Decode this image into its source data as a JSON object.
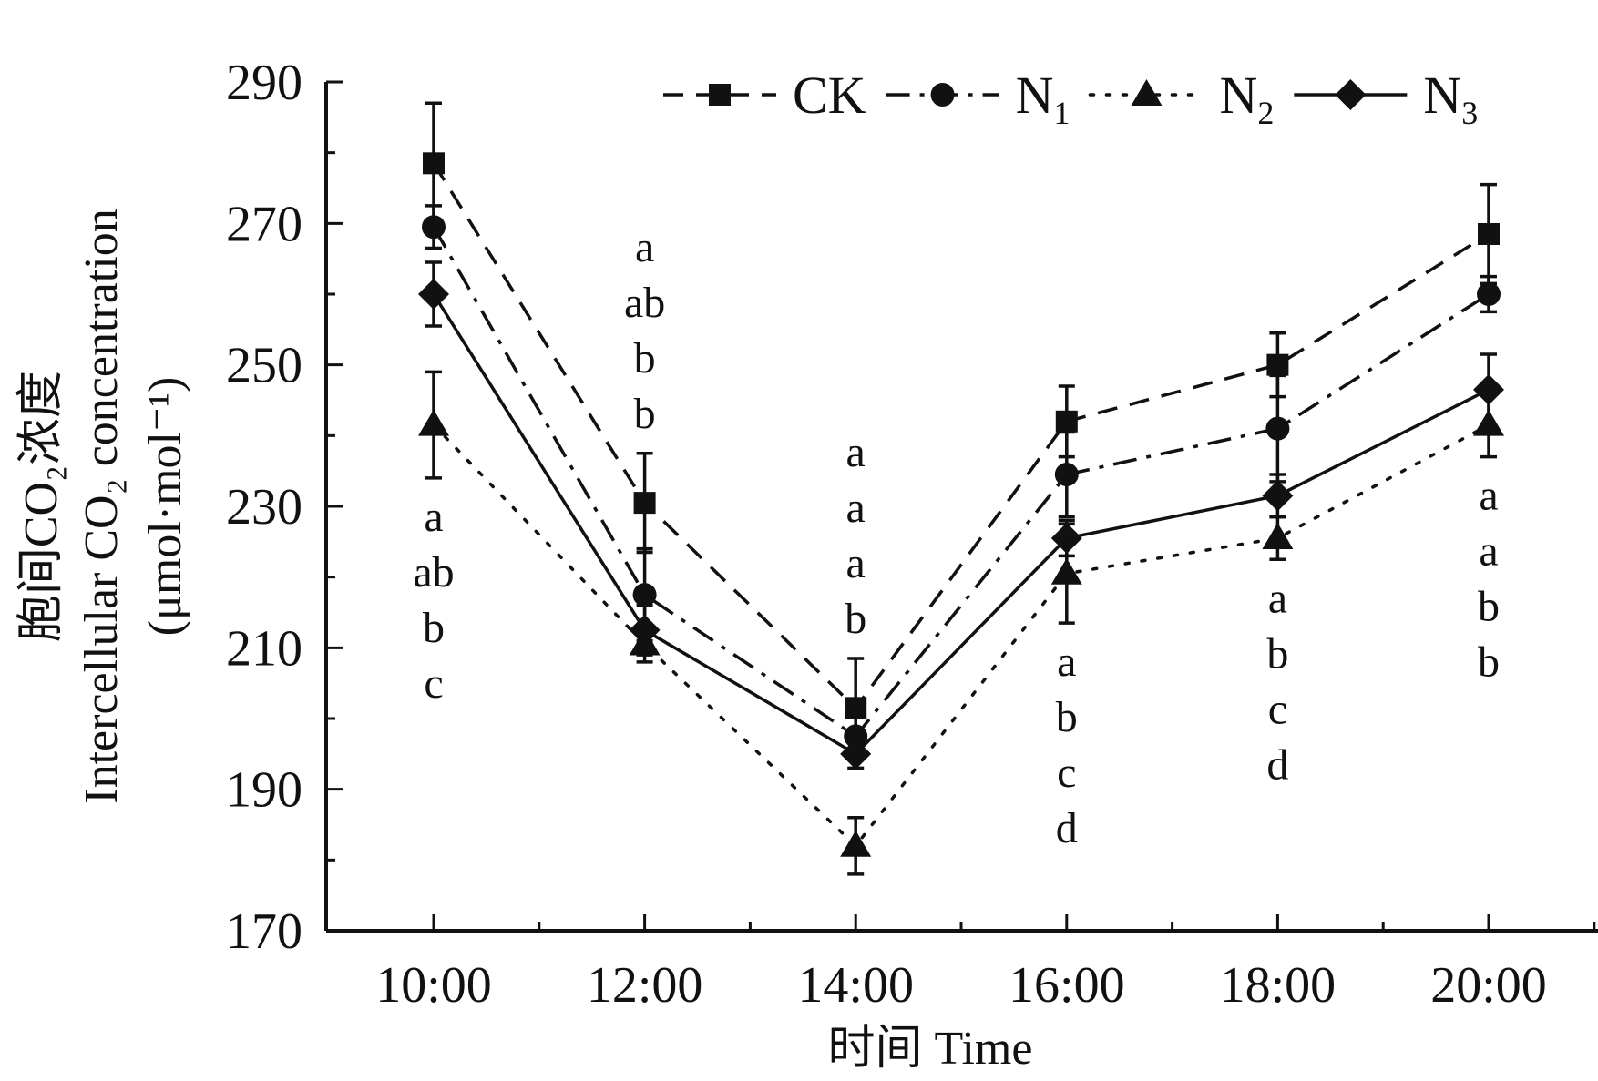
{
  "chart_data": {
    "type": "line",
    "title": "",
    "xlabel": "时间 Time",
    "ylabel_lines": [
      "胞间CO₂浓度",
      "Intercellular CO₂ concentration",
      "(μmol·mol⁻¹)"
    ],
    "categories": [
      "10:00",
      "12:00",
      "14:00",
      "16:00",
      "18:00",
      "20:00"
    ],
    "ylim": [
      170,
      290
    ],
    "yticks": [
      170,
      190,
      210,
      230,
      250,
      270,
      290
    ],
    "legend_position": "top-right",
    "series": [
      {
        "name": "CK",
        "name_main": "CK",
        "name_sub": "",
        "marker": "square",
        "dash": "dash",
        "values": [
          278.5,
          230.5,
          201.5,
          242,
          250,
          268.5
        ],
        "errors": [
          8.5,
          7,
          7,
          5,
          4.5,
          7
        ]
      },
      {
        "name": "N1",
        "name_main": "N",
        "name_sub": "1",
        "marker": "circle",
        "dash": "dashdot",
        "values": [
          269.5,
          217.5,
          197.5,
          234.5,
          241,
          260
        ],
        "errors": [
          3,
          6.5,
          3,
          6,
          7.5,
          2.5
        ]
      },
      {
        "name": "N2",
        "name_main": "N",
        "name_sub": "2",
        "marker": "triangle",
        "dash": "dot",
        "values": [
          241.5,
          210.5,
          182,
          220.5,
          225.5,
          241.5
        ],
        "errors": [
          7.5,
          2.5,
          4,
          7,
          3,
          4.5
        ]
      },
      {
        "name": "N3",
        "name_main": "N",
        "name_sub": "3",
        "marker": "diamond",
        "dash": "solid",
        "values": [
          260,
          212.5,
          195,
          225.5,
          231.5,
          246.5
        ],
        "errors": [
          4.5,
          3.5,
          2,
          2.5,
          3,
          5
        ]
      }
    ],
    "significance": [
      {
        "category": "10:00",
        "letters": [
          "a",
          "ab",
          "b",
          "c"
        ],
        "placement": "below"
      },
      {
        "category": "12:00",
        "letters": [
          "a",
          "ab",
          "b",
          "b"
        ],
        "placement": "above"
      },
      {
        "category": "14:00",
        "letters": [
          "a",
          "a",
          "a",
          "b"
        ],
        "placement": "above"
      },
      {
        "category": "16:00",
        "letters": [
          "a",
          "b",
          "c",
          "d"
        ],
        "placement": "below"
      },
      {
        "category": "18:00",
        "letters": [
          "a",
          "b",
          "c",
          "d"
        ],
        "placement": "below"
      },
      {
        "category": "20:00",
        "letters": [
          "a",
          "a",
          "b",
          "b"
        ],
        "placement": "below"
      }
    ]
  }
}
